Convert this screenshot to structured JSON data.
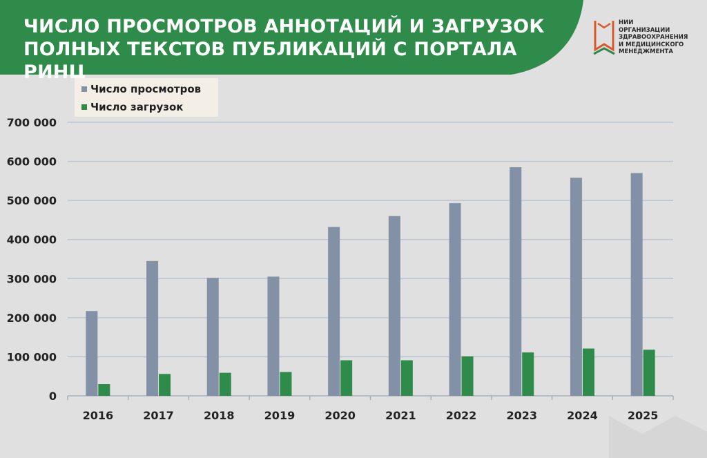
{
  "header": {
    "title_lines": [
      "ЧИСЛО ПРОСМОТРОВ АННОТАЦИЙ И ЗАГРУЗОК",
      "ПОЛНЫХ ТЕКСТОВ ПУБЛИКАЦИЙ С ПОРТАЛА РИНЦ"
    ],
    "banner_color": "#2e8b4a"
  },
  "logo": {
    "text_lines": [
      "НИИ",
      "ОРГАНИЗАЦИИ",
      "ЗДРАВООХРАНЕНИЯ",
      "И МЕДИЦИНСКОГО",
      "МЕНЕДЖМЕНТА"
    ],
    "icon": "book-logo-icon",
    "colors": [
      "#d9582b",
      "#2e8b4a"
    ]
  },
  "chart_data": {
    "type": "bar",
    "categories": [
      "2016",
      "2017",
      "2018",
      "2019",
      "2020",
      "2021",
      "2022",
      "2023",
      "2024",
      "2025"
    ],
    "series": [
      {
        "name": "Число просмотров",
        "color": "#8291a6",
        "values": [
          217000,
          345000,
          302000,
          305000,
          432000,
          460000,
          493000,
          585000,
          558000,
          570000
        ]
      },
      {
        "name": "Число загрузок",
        "color": "#2e8b4a",
        "values": [
          30000,
          56000,
          59000,
          61000,
          91000,
          91000,
          101000,
          111000,
          121000,
          118000
        ]
      }
    ],
    "ylim": [
      0,
      700000
    ],
    "yticks": [
      0,
      100000,
      200000,
      300000,
      400000,
      500000,
      600000,
      700000
    ],
    "ytick_labels": [
      "0",
      "100 000",
      "200 000",
      "300 000",
      "400 000",
      "500 000",
      "600 000",
      "700 000"
    ],
    "grid": true,
    "legend_position": "top-left",
    "title": "",
    "xlabel": "",
    "ylabel": ""
  }
}
